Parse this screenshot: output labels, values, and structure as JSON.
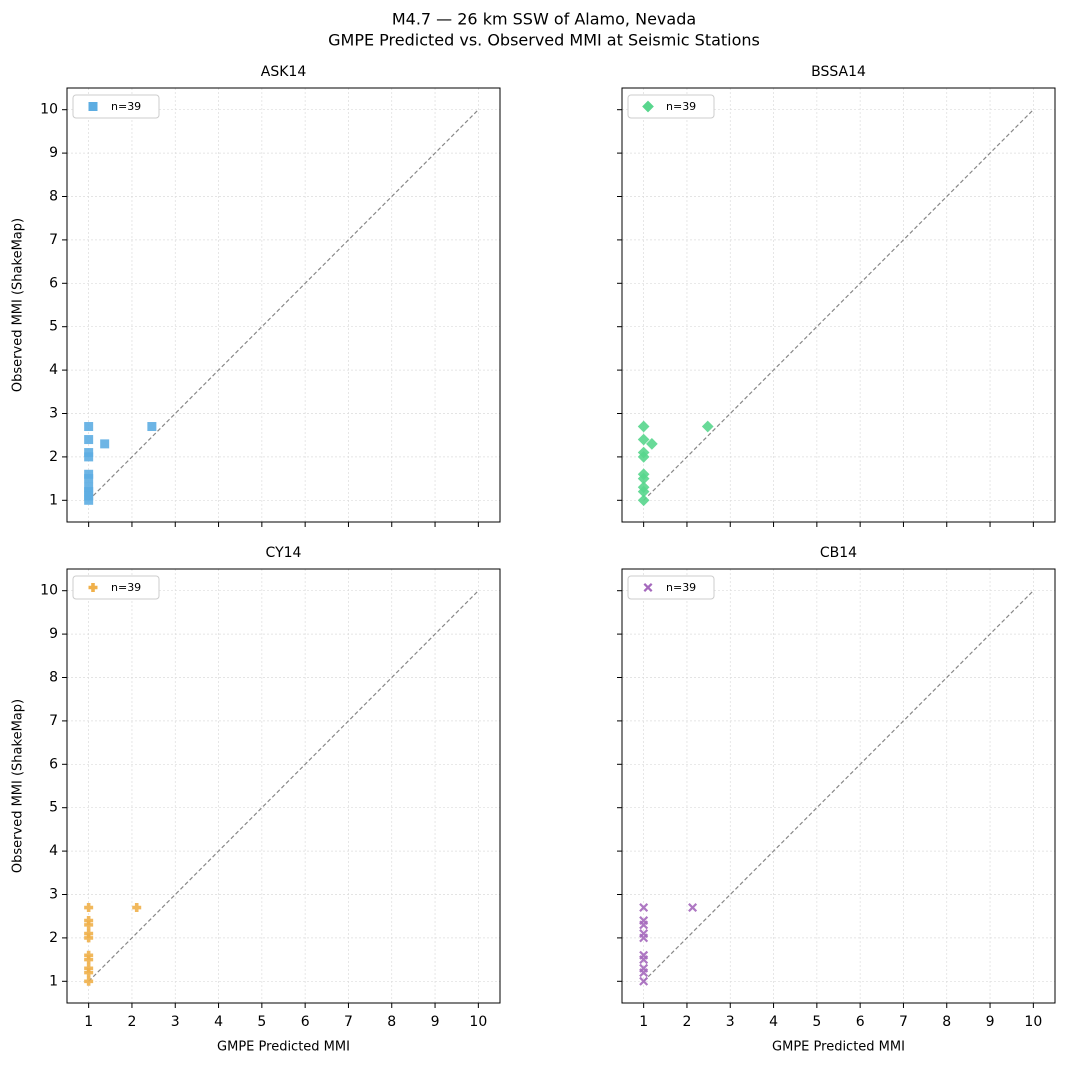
{
  "figure": {
    "title": "M4.7 — 26 km SSW of Alamo, Nevada",
    "subtitle": "GMPE Predicted vs. Observed MMI at Seismic Stations"
  },
  "chart_data": [
    {
      "type": "scatter",
      "title": "ASK14",
      "ylabel": "Observed MMI (ShakeMap)",
      "xlim": [
        0.5,
        10.5
      ],
      "ylim": [
        0.5,
        10.5
      ],
      "xticks": [
        1,
        2,
        3,
        4,
        5,
        6,
        7,
        8,
        9,
        10
      ],
      "yticks": [
        1,
        2,
        3,
        4,
        5,
        6,
        7,
        8,
        9,
        10
      ],
      "grid": true,
      "legend": "upper left",
      "reference_line": [
        1,
        10
      ],
      "series": [
        {
          "name": "n=39",
          "color": "#5dade2",
          "marker": "square",
          "x": [
            1,
            1,
            1,
            1,
            1,
            1,
            1,
            1,
            1,
            1,
            1.37,
            2.46
          ],
          "values": [
            2.7,
            2.4,
            2.1,
            2.0,
            1.6,
            1.5,
            1.3,
            1.2,
            1.1,
            1.0,
            2.3,
            2.7
          ]
        }
      ]
    },
    {
      "type": "scatter",
      "title": "BSSA14",
      "xlim": [
        0.5,
        10.5
      ],
      "ylim": [
        0.5,
        10.5
      ],
      "xticks": [
        1,
        2,
        3,
        4,
        5,
        6,
        7,
        8,
        9,
        10
      ],
      "yticks": [
        1,
        2,
        3,
        4,
        5,
        6,
        7,
        8,
        9,
        10
      ],
      "grid": true,
      "legend": "upper left",
      "reference_line": [
        1,
        10
      ],
      "series": [
        {
          "name": "n=39",
          "color": "#58d68d",
          "marker": "diamond",
          "x": [
            1,
            1,
            1.19,
            1,
            1,
            1,
            1,
            1,
            1,
            1,
            2.48
          ],
          "values": [
            2.7,
            2.4,
            2.3,
            2.1,
            2.0,
            1.6,
            1.5,
            1.3,
            1.2,
            1.0,
            2.7
          ]
        }
      ]
    },
    {
      "type": "scatter",
      "title": "CY14",
      "xlabel": "GMPE Predicted MMI",
      "ylabel": "Observed MMI (ShakeMap)",
      "xlim": [
        0.5,
        10.5
      ],
      "ylim": [
        0.5,
        10.5
      ],
      "xticks": [
        1,
        2,
        3,
        4,
        5,
        6,
        7,
        8,
        9,
        10
      ],
      "yticks": [
        1,
        2,
        3,
        4,
        5,
        6,
        7,
        8,
        9,
        10
      ],
      "grid": true,
      "legend": "upper left",
      "reference_line": [
        1,
        10
      ],
      "series": [
        {
          "name": "n=39",
          "color": "#f0b04a",
          "marker": "plus",
          "x": [
            1,
            1,
            1,
            1,
            1,
            1,
            1,
            1,
            1,
            1,
            2.11
          ],
          "values": [
            2.7,
            2.4,
            2.3,
            2.1,
            2.0,
            1.6,
            1.5,
            1.3,
            1.2,
            1.0,
            2.7
          ]
        }
      ]
    },
    {
      "type": "scatter",
      "title": "CB14",
      "xlabel": "GMPE Predicted MMI",
      "xlim": [
        0.5,
        10.5
      ],
      "ylim": [
        0.5,
        10.5
      ],
      "xticks": [
        1,
        2,
        3,
        4,
        5,
        6,
        7,
        8,
        9,
        10
      ],
      "yticks": [
        1,
        2,
        3,
        4,
        5,
        6,
        7,
        8,
        9,
        10
      ],
      "grid": true,
      "legend": "upper left",
      "reference_line": [
        1,
        10
      ],
      "series": [
        {
          "name": "n=39",
          "color": "#a569bd",
          "marker": "x",
          "x": [
            1,
            1,
            1,
            1,
            1,
            1,
            1,
            1,
            1,
            1,
            2.13
          ],
          "values": [
            2.7,
            2.4,
            2.3,
            2.1,
            2.0,
            1.6,
            1.5,
            1.3,
            1.2,
            1.0,
            2.7
          ]
        }
      ]
    }
  ]
}
